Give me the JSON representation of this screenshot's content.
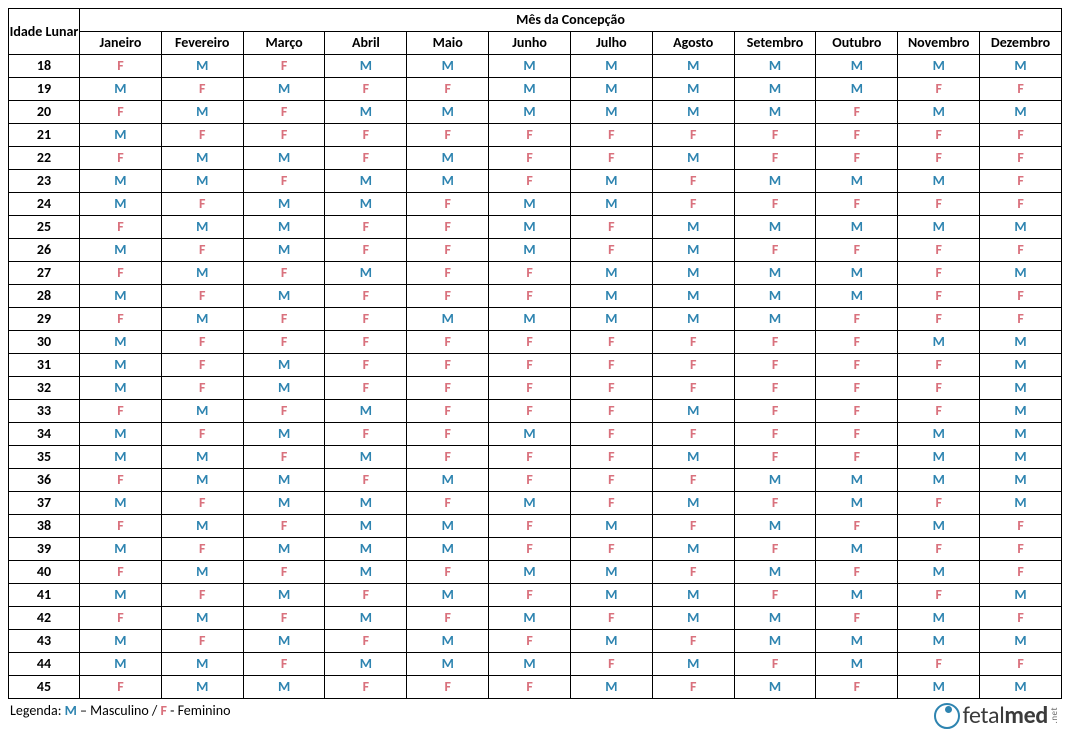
{
  "table": {
    "type": "table",
    "header_age": "Idade Lunar",
    "header_month": "Mês da Concepção",
    "months": [
      "Janeiro",
      "Fevereiro",
      "Março",
      "Abril",
      "Maio",
      "Junho",
      "Julho",
      "Agosto",
      "Setembro",
      "Outubro",
      "Novembro",
      "Dezembro"
    ],
    "ages": [
      18,
      19,
      20,
      21,
      22,
      23,
      24,
      25,
      26,
      27,
      28,
      29,
      30,
      31,
      32,
      33,
      34,
      35,
      36,
      37,
      38,
      39,
      40,
      41,
      42,
      43,
      44,
      45
    ],
    "rows": [
      [
        "F",
        "M",
        "F",
        "M",
        "M",
        "M",
        "M",
        "M",
        "M",
        "M",
        "M",
        "M"
      ],
      [
        "M",
        "F",
        "M",
        "F",
        "F",
        "M",
        "M",
        "M",
        "M",
        "M",
        "F",
        "F"
      ],
      [
        "F",
        "M",
        "F",
        "M",
        "M",
        "M",
        "M",
        "M",
        "M",
        "F",
        "M",
        "M"
      ],
      [
        "M",
        "F",
        "F",
        "F",
        "F",
        "F",
        "F",
        "F",
        "F",
        "F",
        "F",
        "F"
      ],
      [
        "F",
        "M",
        "M",
        "F",
        "M",
        "F",
        "F",
        "M",
        "F",
        "F",
        "F",
        "F"
      ],
      [
        "M",
        "M",
        "F",
        "M",
        "M",
        "F",
        "M",
        "F",
        "M",
        "M",
        "M",
        "F"
      ],
      [
        "M",
        "F",
        "M",
        "M",
        "F",
        "M",
        "M",
        "F",
        "F",
        "F",
        "F",
        "F"
      ],
      [
        "F",
        "M",
        "M",
        "F",
        "F",
        "M",
        "F",
        "M",
        "M",
        "M",
        "M",
        "M"
      ],
      [
        "M",
        "F",
        "M",
        "F",
        "F",
        "M",
        "F",
        "M",
        "F",
        "F",
        "F",
        "F"
      ],
      [
        "F",
        "M",
        "F",
        "M",
        "F",
        "F",
        "M",
        "M",
        "M",
        "M",
        "F",
        "M"
      ],
      [
        "M",
        "F",
        "M",
        "F",
        "F",
        "F",
        "M",
        "M",
        "M",
        "M",
        "F",
        "F"
      ],
      [
        "F",
        "M",
        "F",
        "F",
        "M",
        "M",
        "M",
        "M",
        "M",
        "F",
        "F",
        "F"
      ],
      [
        "M",
        "F",
        "F",
        "F",
        "F",
        "F",
        "F",
        "F",
        "F",
        "F",
        "M",
        "M"
      ],
      [
        "M",
        "F",
        "M",
        "F",
        "F",
        "F",
        "F",
        "F",
        "F",
        "F",
        "F",
        "M"
      ],
      [
        "M",
        "F",
        "M",
        "F",
        "F",
        "F",
        "F",
        "F",
        "F",
        "F",
        "F",
        "M"
      ],
      [
        "F",
        "M",
        "F",
        "M",
        "F",
        "F",
        "F",
        "M",
        "F",
        "F",
        "F",
        "M"
      ],
      [
        "M",
        "F",
        "M",
        "F",
        "F",
        "M",
        "F",
        "F",
        "F",
        "F",
        "M",
        "M"
      ],
      [
        "M",
        "M",
        "F",
        "M",
        "F",
        "F",
        "F",
        "M",
        "F",
        "F",
        "M",
        "M"
      ],
      [
        "F",
        "M",
        "M",
        "F",
        "M",
        "F",
        "F",
        "F",
        "M",
        "M",
        "M",
        "M"
      ],
      [
        "M",
        "F",
        "M",
        "M",
        "F",
        "M",
        "F",
        "M",
        "F",
        "M",
        "F",
        "M"
      ],
      [
        "F",
        "M",
        "F",
        "M",
        "M",
        "F",
        "M",
        "F",
        "M",
        "F",
        "M",
        "F"
      ],
      [
        "M",
        "F",
        "M",
        "M",
        "M",
        "F",
        "F",
        "M",
        "F",
        "M",
        "F",
        "F"
      ],
      [
        "F",
        "M",
        "F",
        "M",
        "F",
        "M",
        "M",
        "F",
        "M",
        "F",
        "M",
        "F"
      ],
      [
        "M",
        "F",
        "M",
        "F",
        "M",
        "F",
        "M",
        "M",
        "F",
        "M",
        "F",
        "M"
      ],
      [
        "F",
        "M",
        "F",
        "M",
        "F",
        "M",
        "F",
        "M",
        "M",
        "F",
        "M",
        "F"
      ],
      [
        "M",
        "F",
        "M",
        "F",
        "M",
        "F",
        "M",
        "F",
        "M",
        "M",
        "M",
        "M"
      ],
      [
        "M",
        "M",
        "F",
        "M",
        "M",
        "M",
        "F",
        "M",
        "F",
        "M",
        "F",
        "F"
      ],
      [
        "F",
        "M",
        "M",
        "F",
        "F",
        "F",
        "M",
        "F",
        "M",
        "F",
        "M",
        "M"
      ]
    ],
    "colors": {
      "M": "#2e84b0",
      "F": "#d9717d",
      "border": "#000000",
      "background": "#ffffff",
      "text": "#000000"
    },
    "font_size": 14,
    "cell_font_weight": "bold"
  },
  "legend": {
    "prefix": "Legenda: ",
    "m_symbol": "M",
    "m_text": " – Masculino / ",
    "f_symbol": "F",
    "f_text": " - Feminino"
  },
  "logo": {
    "text_part_a": "fetal",
    "text_part_b": "med",
    "suffix": ".net",
    "circle_color": "#2e84b0",
    "text_color": "#3b3b3b"
  }
}
